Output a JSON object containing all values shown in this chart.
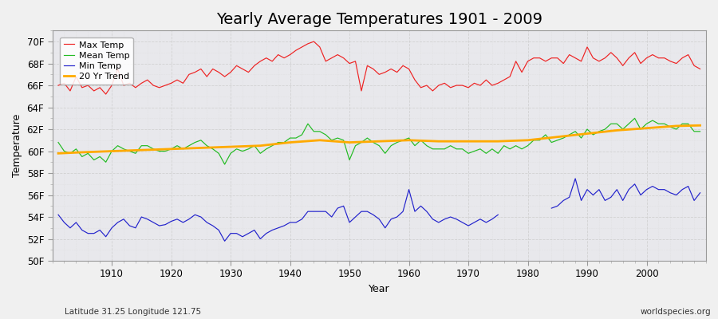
{
  "title": "Yearly Average Temperatures 1901 - 2009",
  "xlabel": "Year",
  "ylabel": "Temperature",
  "subtitle_left": "Latitude 31.25 Longitude 121.75",
  "subtitle_right": "worldspecies.org",
  "years": [
    1901,
    1902,
    1903,
    1904,
    1905,
    1906,
    1907,
    1908,
    1909,
    1910,
    1911,
    1912,
    1913,
    1914,
    1915,
    1916,
    1917,
    1918,
    1919,
    1920,
    1921,
    1922,
    1923,
    1924,
    1925,
    1926,
    1927,
    1928,
    1929,
    1930,
    1931,
    1932,
    1933,
    1934,
    1935,
    1936,
    1937,
    1938,
    1939,
    1940,
    1941,
    1942,
    1943,
    1944,
    1945,
    1946,
    1947,
    1948,
    1949,
    1950,
    1951,
    1952,
    1953,
    1954,
    1955,
    1956,
    1957,
    1958,
    1959,
    1960,
    1961,
    1962,
    1963,
    1964,
    1965,
    1966,
    1967,
    1968,
    1969,
    1970,
    1971,
    1972,
    1973,
    1974,
    1975,
    1976,
    1977,
    1978,
    1979,
    1980,
    1981,
    1982,
    1983,
    1984,
    1985,
    1986,
    1987,
    1988,
    1989,
    1990,
    1991,
    1992,
    1993,
    1994,
    1995,
    1996,
    1997,
    1998,
    1999,
    2000,
    2001,
    2002,
    2003,
    2004,
    2005,
    2006,
    2007,
    2008,
    2009
  ],
  "max_temp": [
    66.0,
    66.2,
    65.5,
    66.8,
    65.8,
    66.0,
    65.5,
    65.8,
    65.2,
    66.0,
    67.5,
    66.0,
    66.2,
    65.8,
    66.2,
    66.5,
    66.0,
    65.8,
    66.0,
    66.2,
    66.5,
    66.2,
    67.0,
    67.2,
    67.5,
    66.8,
    67.5,
    67.2,
    66.8,
    67.2,
    67.8,
    67.5,
    67.2,
    67.8,
    68.2,
    68.5,
    68.2,
    68.8,
    68.5,
    68.8,
    69.2,
    69.5,
    69.8,
    70.0,
    69.5,
    68.2,
    68.5,
    68.8,
    68.5,
    68.0,
    68.2,
    65.5,
    67.8,
    67.5,
    67.0,
    67.2,
    67.5,
    67.2,
    67.8,
    67.5,
    66.5,
    65.8,
    66.0,
    65.5,
    66.0,
    66.2,
    65.8,
    66.0,
    66.0,
    65.8,
    66.2,
    66.0,
    66.5,
    66.0,
    66.2,
    66.5,
    66.8,
    68.2,
    67.2,
    68.2,
    68.5,
    68.5,
    68.2,
    68.5,
    68.5,
    68.0,
    68.8,
    68.5,
    68.2,
    69.5,
    68.5,
    68.2,
    68.5,
    69.0,
    68.5,
    67.8,
    68.5,
    69.0,
    68.0,
    68.5,
    68.8,
    68.5,
    68.5,
    68.2,
    68.0,
    68.5,
    68.8,
    67.8,
    67.5
  ],
  "mean_temp": [
    60.8,
    60.0,
    59.8,
    60.2,
    59.5,
    59.8,
    59.2,
    59.5,
    59.0,
    60.0,
    60.5,
    60.2,
    60.0,
    59.8,
    60.5,
    60.5,
    60.2,
    60.0,
    60.0,
    60.2,
    60.5,
    60.2,
    60.5,
    60.8,
    61.0,
    60.5,
    60.2,
    59.8,
    58.8,
    59.8,
    60.2,
    60.0,
    60.2,
    60.5,
    59.8,
    60.2,
    60.5,
    60.8,
    60.8,
    61.2,
    61.2,
    61.5,
    62.5,
    61.8,
    61.8,
    61.5,
    61.0,
    61.2,
    61.0,
    59.2,
    60.5,
    60.8,
    61.2,
    60.8,
    60.5,
    59.8,
    60.5,
    60.8,
    61.0,
    61.2,
    60.5,
    61.0,
    60.5,
    60.2,
    60.2,
    60.2,
    60.5,
    60.2,
    60.2,
    59.8,
    60.0,
    60.2,
    59.8,
    60.2,
    59.8,
    60.5,
    60.2,
    60.5,
    60.2,
    60.5,
    61.0,
    61.0,
    61.5,
    60.8,
    61.0,
    61.2,
    61.5,
    61.8,
    61.2,
    62.0,
    61.5,
    61.8,
    62.0,
    62.5,
    62.5,
    62.0,
    62.5,
    63.0,
    62.0,
    62.5,
    62.8,
    62.5,
    62.5,
    62.2,
    62.0,
    62.5,
    62.5,
    61.8,
    61.8
  ],
  "min_temp": [
    54.2,
    53.5,
    53.0,
    53.5,
    52.8,
    52.5,
    52.5,
    52.8,
    52.2,
    53.0,
    53.5,
    53.8,
    53.2,
    53.0,
    54.0,
    53.8,
    53.5,
    53.2,
    53.3,
    53.6,
    53.8,
    53.5,
    53.8,
    54.2,
    54.0,
    53.5,
    53.2,
    52.8,
    51.8,
    52.5,
    52.5,
    52.2,
    52.5,
    52.8,
    52.0,
    52.5,
    52.8,
    53.0,
    53.2,
    53.5,
    53.5,
    53.8,
    54.5,
    54.5,
    54.5,
    54.5,
    54.0,
    54.8,
    55.0,
    53.5,
    54.0,
    54.5,
    54.5,
    54.2,
    53.8,
    53.0,
    53.8,
    54.0,
    54.5,
    56.5,
    54.5,
    55.0,
    54.5,
    53.8,
    53.5,
    53.8,
    54.0,
    53.8,
    53.5,
    53.2,
    53.5,
    53.8,
    53.5,
    53.8,
    54.2,
    null,
    null,
    null,
    null,
    null,
    null,
    null,
    null,
    54.8,
    55.0,
    55.5,
    55.8,
    57.5,
    55.5,
    56.5,
    56.0,
    56.5,
    55.5,
    55.8,
    56.5,
    55.5,
    56.5,
    57.0,
    56.0,
    56.5,
    56.8,
    56.5,
    56.5,
    56.2,
    56.0,
    56.5,
    56.8,
    55.5,
    56.2
  ],
  "trend_years": [
    1901,
    1905,
    1910,
    1915,
    1920,
    1925,
    1930,
    1935,
    1940,
    1945,
    1950,
    1955,
    1960,
    1965,
    1970,
    1975,
    1980,
    1985,
    1990,
    1995,
    2000,
    2005,
    2009
  ],
  "trend_vals": [
    59.8,
    59.9,
    60.0,
    60.1,
    60.2,
    60.3,
    60.4,
    60.5,
    60.8,
    61.0,
    60.8,
    60.9,
    61.0,
    60.9,
    60.9,
    60.9,
    61.0,
    61.3,
    61.6,
    61.9,
    62.1,
    62.3,
    62.35
  ],
  "ylim": [
    50,
    71
  ],
  "yticks": [
    50,
    52,
    54,
    56,
    58,
    60,
    62,
    64,
    66,
    68,
    70
  ],
  "xlim": [
    1900,
    2010
  ],
  "xticks": [
    1910,
    1920,
    1930,
    1940,
    1950,
    1960,
    1970,
    1980,
    1990,
    2000
  ],
  "colors": {
    "max": "#ee2222",
    "mean": "#22bb22",
    "min": "#2222cc",
    "trend": "#ffaa00",
    "background": "#f0f0f0",
    "plot_bg": "#e8e8ec",
    "grid_major": "#cccccc",
    "grid_minor": "#dddddd",
    "text": "#000000"
  },
  "legend_labels": [
    "Max Temp",
    "Mean Temp",
    "Min Temp",
    "20 Yr Trend"
  ],
  "title_fontsize": 14,
  "axis_fontsize": 9,
  "tick_fontsize": 8.5
}
